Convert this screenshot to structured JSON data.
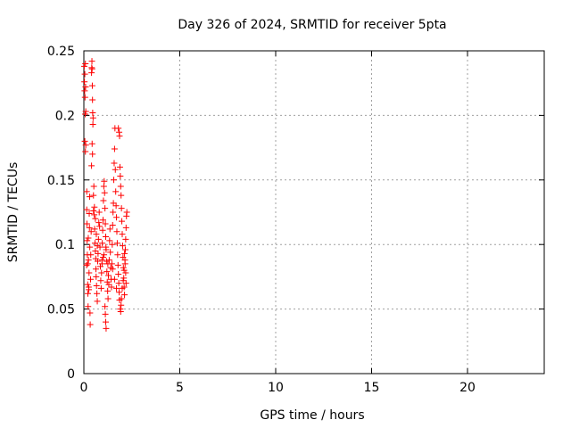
{
  "chart_data": {
    "type": "scatter",
    "title": "Day 326 of 2024, SRMTID for receiver 5pta",
    "xlabel": "GPS time / hours",
    "ylabel": "SRMTID / TECUs",
    "xlim": [
      0,
      24
    ],
    "ylim": [
      0,
      0.25
    ],
    "x_ticks": [
      "0",
      "5",
      "10",
      "15",
      "20"
    ],
    "x_tick_values": [
      0,
      5,
      10,
      15,
      20
    ],
    "y_ticks": [
      "0",
      "0.05",
      "0.1",
      "0.15",
      "0.2",
      "0.25"
    ],
    "y_tick_values": [
      0,
      0.05,
      0.1,
      0.15,
      0.2,
      0.25
    ],
    "grid": true,
    "marker": "+",
    "color": "#ff0000",
    "series": [
      {
        "points": [
          [
            0.02,
            0.238
          ],
          [
            0.03,
            0.226
          ],
          [
            0.04,
            0.219
          ],
          [
            0.05,
            0.232
          ],
          [
            0.06,
            0.214
          ],
          [
            0.07,
            0.201
          ],
          [
            0.08,
            0.24
          ],
          [
            0.09,
            0.222
          ],
          [
            0.1,
            0.203
          ],
          [
            0.05,
            0.18
          ],
          [
            0.08,
            0.172
          ],
          [
            0.1,
            0.177
          ],
          [
            0.15,
            0.141
          ],
          [
            0.15,
            0.127
          ],
          [
            0.16,
            0.116
          ],
          [
            0.17,
            0.103
          ],
          [
            0.18,
            0.092
          ],
          [
            0.2,
            0.085
          ],
          [
            0.2,
            0.069
          ],
          [
            0.21,
            0.062
          ],
          [
            0.22,
            0.052
          ],
          [
            0.14,
            0.084
          ],
          [
            0.23,
            0.105
          ],
          [
            0.24,
            0.088
          ],
          [
            0.25,
            0.067
          ],
          [
            0.26,
            0.065
          ],
          [
            0.27,
            0.078
          ],
          [
            0.28,
            0.124
          ],
          [
            0.29,
            0.113
          ],
          [
            0.3,
            0.137
          ],
          [
            0.31,
            0.098
          ],
          [
            0.32,
            0.047
          ],
          [
            0.33,
            0.038
          ],
          [
            0.35,
            0.073
          ],
          [
            0.36,
            0.092
          ],
          [
            0.38,
            0.11
          ],
          [
            0.4,
            0.233
          ],
          [
            0.41,
            0.237
          ],
          [
            0.42,
            0.242
          ],
          [
            0.43,
            0.236
          ],
          [
            0.44,
            0.223
          ],
          [
            0.45,
            0.212
          ],
          [
            0.46,
            0.202
          ],
          [
            0.47,
            0.193
          ],
          [
            0.43,
            0.178
          ],
          [
            0.45,
            0.17
          ],
          [
            0.4,
            0.161
          ],
          [
            0.48,
            0.198
          ],
          [
            0.5,
            0.126
          ],
          [
            0.52,
            0.145
          ],
          [
            0.54,
            0.123
          ],
          [
            0.56,
            0.112
          ],
          [
            0.58,
            0.101
          ],
          [
            0.6,
            0.095
          ],
          [
            0.62,
            0.089
          ],
          [
            0.63,
            0.081
          ],
          [
            0.64,
            0.075
          ],
          [
            0.66,
            0.068
          ],
          [
            0.68,
            0.062
          ],
          [
            0.7,
            0.056
          ],
          [
            0.5,
            0.138
          ],
          [
            0.55,
            0.129
          ],
          [
            0.6,
            0.12
          ],
          [
            0.65,
            0.108
          ],
          [
            0.7,
            0.099
          ],
          [
            0.72,
            0.087
          ],
          [
            0.74,
            0.093
          ],
          [
            0.76,
            0.104
          ],
          [
            0.78,
            0.117
          ],
          [
            0.8,
            0.125
          ],
          [
            0.82,
            0.114
          ],
          [
            0.84,
            0.098
          ],
          [
            0.86,
            0.083
          ],
          [
            0.88,
            0.072
          ],
          [
            0.9,
            0.066
          ],
          [
            0.92,
            0.078
          ],
          [
            0.94,
            0.088
          ],
          [
            0.96,
            0.101
          ],
          [
            0.98,
            0.111
          ],
          [
            1.0,
            0.119
          ],
          [
            1.02,
            0.134
          ],
          [
            1.04,
            0.145
          ],
          [
            1.06,
            0.149
          ],
          [
            1.08,
            0.14
          ],
          [
            1.1,
            0.128
          ],
          [
            1.12,
            0.116
          ],
          [
            1.14,
            0.106
          ],
          [
            1.16,
            0.096
          ],
          [
            1.18,
            0.087
          ],
          [
            1.2,
            0.079
          ],
          [
            1.22,
            0.071
          ],
          [
            1.24,
            0.064
          ],
          [
            1.26,
            0.058
          ],
          [
            1.1,
            0.052
          ],
          [
            1.12,
            0.046
          ],
          [
            1.14,
            0.04
          ],
          [
            1.16,
            0.035
          ],
          [
            1.0,
            0.09
          ],
          [
            0.95,
            0.085
          ],
          [
            1.05,
            0.092
          ],
          [
            1.15,
            0.098
          ],
          [
            1.25,
            0.085
          ],
          [
            1.28,
            0.076
          ],
          [
            1.3,
            0.069
          ],
          [
            1.32,
            0.088
          ],
          [
            1.34,
            0.103
          ],
          [
            1.36,
            0.112
          ],
          [
            1.38,
            0.094
          ],
          [
            1.4,
            0.082
          ],
          [
            1.42,
            0.073
          ],
          [
            1.44,
            0.067
          ],
          [
            1.46,
            0.085
          ],
          [
            1.48,
            0.1
          ],
          [
            1.5,
            0.115
          ],
          [
            1.52,
            0.125
          ],
          [
            1.54,
            0.132
          ],
          [
            1.56,
            0.15
          ],
          [
            1.58,
            0.163
          ],
          [
            1.6,
            0.174
          ],
          [
            1.62,
            0.19
          ],
          [
            1.64,
            0.158
          ],
          [
            1.66,
            0.141
          ],
          [
            1.68,
            0.13
          ],
          [
            1.7,
            0.121
          ],
          [
            1.72,
            0.11
          ],
          [
            1.74,
            0.101
          ],
          [
            1.76,
            0.092
          ],
          [
            1.78,
            0.084
          ],
          [
            1.8,
            0.077
          ],
          [
            1.82,
            0.07
          ],
          [
            1.84,
            0.063
          ],
          [
            1.86,
            0.057
          ],
          [
            1.8,
            0.19
          ],
          [
            1.84,
            0.187
          ],
          [
            1.86,
            0.184
          ],
          [
            1.88,
            0.16
          ],
          [
            1.9,
            0.153
          ],
          [
            1.92,
            0.145
          ],
          [
            1.94,
            0.138
          ],
          [
            1.96,
            0.128
          ],
          [
            1.98,
            0.118
          ],
          [
            2.0,
            0.108
          ],
          [
            2.02,
            0.099
          ],
          [
            2.04,
            0.09
          ],
          [
            2.06,
            0.082
          ],
          [
            2.08,
            0.074
          ],
          [
            2.1,
            0.067
          ],
          [
            2.12,
            0.061
          ],
          [
            1.9,
            0.05
          ],
          [
            1.92,
            0.048
          ],
          [
            1.94,
            0.053
          ],
          [
            1.96,
            0.058
          ],
          [
            2.0,
            0.066
          ],
          [
            2.05,
            0.072
          ],
          [
            2.1,
            0.08
          ],
          [
            2.14,
            0.088
          ],
          [
            2.16,
            0.096
          ],
          [
            2.18,
            0.104
          ],
          [
            2.2,
            0.113
          ],
          [
            2.22,
            0.122
          ],
          [
            2.24,
            0.125
          ],
          [
            2.2,
            0.07
          ],
          [
            2.18,
            0.078
          ],
          [
            2.15,
            0.085
          ],
          [
            2.12,
            0.093
          ],
          [
            1.7,
            0.066
          ],
          [
            1.6,
            0.073
          ],
          [
            1.5,
            0.081
          ]
        ]
      }
    ]
  }
}
